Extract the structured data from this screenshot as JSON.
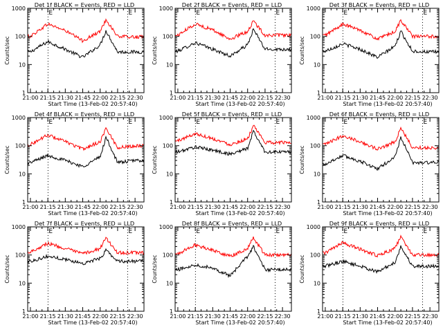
{
  "chart_data": [
    {
      "type": "line",
      "title": "Det 1f BLACK = Events, RED = LLD",
      "xlabel": "Start Time (13-Feb-02 20:57:40)",
      "ylabel": "Counts/sec",
      "yscale": "log",
      "ylim": [
        1,
        1000
      ],
      "xlim_minutes": [
        0,
        100
      ],
      "x_tick_labels": [
        "21:00",
        "21:15",
        "21:30",
        "21:45",
        "22:00",
        "22:15",
        "22:30"
      ],
      "y_tick_labels": [
        "1",
        "10",
        "100",
        "1000"
      ],
      "markers": [
        {
          "label": "E",
          "x_minutes": 17.5
        },
        {
          "label": "E",
          "x_minutes": 86
        }
      ],
      "series": [
        {
          "color": "#000000",
          "peak_time": "22:05",
          "peak_value": 160,
          "values_by_time": [
            [
              "21:00",
              28
            ],
            [
              "21:15",
              65
            ],
            [
              "21:30",
              35
            ],
            [
              "21:45",
              18
            ],
            [
              "22:00",
              50
            ],
            [
              "22:05",
              160
            ],
            [
              "22:15",
              28
            ],
            [
              "22:30",
              28
            ]
          ]
        },
        {
          "color": "#ff0000",
          "peak_time": "22:05",
          "peak_value": 400,
          "values_by_time": [
            [
              "21:00",
              100
            ],
            [
              "21:15",
              280
            ],
            [
              "21:30",
              160
            ],
            [
              "21:45",
              70
            ],
            [
              "22:00",
              150
            ],
            [
              "22:05",
              400
            ],
            [
              "22:15",
              100
            ],
            [
              "22:30",
              95
            ]
          ]
        }
      ]
    },
    {
      "type": "line",
      "title": "Det 2f BLACK = Events, RED = LLD",
      "xlabel": "Start Time (13-Feb-02 20:57:40)",
      "ylabel": "Counts/sec",
      "yscale": "log",
      "ylim": [
        1,
        1000
      ],
      "xlim_minutes": [
        0,
        100
      ],
      "x_tick_labels": [
        "21:00",
        "21:15",
        "21:30",
        "21:45",
        "22:00",
        "22:15",
        "22:30"
      ],
      "y_tick_labels": [
        "1",
        "10",
        "100",
        "1000"
      ],
      "markers": [
        {
          "label": "E",
          "x_minutes": 17.5
        },
        {
          "label": "E",
          "x_minutes": 86
        }
      ],
      "series": [
        {
          "color": "#000000",
          "peak_time": "22:05",
          "peak_value": 180,
          "values_by_time": [
            [
              "21:00",
              30
            ],
            [
              "21:15",
              60
            ],
            [
              "21:30",
              35
            ],
            [
              "21:45",
              20
            ],
            [
              "22:00",
              50
            ],
            [
              "22:05",
              180
            ],
            [
              "22:15",
              35
            ],
            [
              "22:30",
              35
            ]
          ]
        },
        {
          "color": "#ff0000",
          "peak_time": "22:05",
          "peak_value": 350,
          "values_by_time": [
            [
              "21:00",
              110
            ],
            [
              "21:15",
              280
            ],
            [
              "21:30",
              170
            ],
            [
              "21:45",
              80
            ],
            [
              "22:00",
              150
            ],
            [
              "22:05",
              350
            ],
            [
              "22:15",
              110
            ],
            [
              "22:30",
              110
            ]
          ]
        }
      ]
    },
    {
      "type": "line",
      "title": "Det 3f BLACK = Events, RED = LLD",
      "xlabel": "Start Time (13-Feb-02 20:57:40)",
      "ylabel": "Counts/sec",
      "yscale": "log",
      "ylim": [
        1,
        1000
      ],
      "xlim_minutes": [
        0,
        100
      ],
      "x_tick_labels": [
        "21:00",
        "21:15",
        "21:30",
        "21:45",
        "22:00",
        "22:15",
        "22:30"
      ],
      "y_tick_labels": [
        "1",
        "10",
        "100",
        "1000"
      ],
      "markers": [
        {
          "label": "E",
          "x_minutes": 17.5
        },
        {
          "label": "E",
          "x_minutes": 86
        }
      ],
      "series": [
        {
          "color": "#000000",
          "peak_time": "22:05",
          "peak_value": 150,
          "values_by_time": [
            [
              "21:00",
              30
            ],
            [
              "21:15",
              55
            ],
            [
              "21:30",
              35
            ],
            [
              "21:45",
              18
            ],
            [
              "22:00",
              45
            ],
            [
              "22:05",
              150
            ],
            [
              "22:15",
              30
            ],
            [
              "22:30",
              28
            ]
          ]
        },
        {
          "color": "#ff0000",
          "peak_time": "22:05",
          "peak_value": 380,
          "values_by_time": [
            [
              "21:00",
              110
            ],
            [
              "21:15",
              270
            ],
            [
              "21:30",
              170
            ],
            [
              "21:45",
              80
            ],
            [
              "22:00",
              150
            ],
            [
              "22:05",
              380
            ],
            [
              "22:15",
              100
            ],
            [
              "22:30",
              100
            ]
          ]
        }
      ]
    },
    {
      "type": "line",
      "title": "Det 4f BLACK = Events, RED = LLD",
      "xlabel": "Start Time (13-Feb-02 20:57:40)",
      "ylabel": "Counts/sec",
      "yscale": "log",
      "ylim": [
        1,
        1000
      ],
      "xlim_minutes": [
        0,
        100
      ],
      "x_tick_labels": [
        "21:00",
        "21:15",
        "21:30",
        "21:45",
        "22:00",
        "22:15",
        "22:30"
      ],
      "y_tick_labels": [
        "1",
        "10",
        "100",
        "1000"
      ],
      "markers": [
        {
          "label": "E",
          "x_minutes": 17.5
        },
        {
          "label": "E",
          "x_minutes": 86
        }
      ],
      "series": [
        {
          "color": "#000000",
          "peak_time": "22:05",
          "peak_value": 200,
          "values_by_time": [
            [
              "21:00",
              25
            ],
            [
              "21:15",
              45
            ],
            [
              "21:30",
              30
            ],
            [
              "21:45",
              18
            ],
            [
              "22:00",
              40
            ],
            [
              "22:05",
              200
            ],
            [
              "22:15",
              25
            ],
            [
              "22:30",
              30
            ]
          ]
        },
        {
          "color": "#ff0000",
          "peak_time": "22:05",
          "peak_value": 420,
          "values_by_time": [
            [
              "21:00",
              110
            ],
            [
              "21:15",
              240
            ],
            [
              "21:30",
              140
            ],
            [
              "21:45",
              75
            ],
            [
              "22:00",
              140
            ],
            [
              "22:05",
              420
            ],
            [
              "22:15",
              85
            ],
            [
              "22:30",
              100
            ]
          ]
        }
      ]
    },
    {
      "type": "line",
      "title": "Det 5f BLACK = Events, RED = LLD",
      "xlabel": "Start Time (13-Feb-02 20:57:40)",
      "ylabel": "Counts/sec",
      "yscale": "log",
      "ylim": [
        1,
        1000
      ],
      "xlim_minutes": [
        0,
        100
      ],
      "x_tick_labels": [
        "21:00",
        "21:15",
        "21:30",
        "21:45",
        "22:00",
        "22:15",
        "22:30"
      ],
      "y_tick_labels": [
        "1",
        "10",
        "100",
        "1000"
      ],
      "markers": [
        {
          "label": "E",
          "x_minutes": 17.5
        },
        {
          "label": "E",
          "x_minutes": 86
        }
      ],
      "series": [
        {
          "color": "#000000",
          "peak_time": "22:05",
          "peak_value": 330,
          "values_by_time": [
            [
              "21:00",
              60
            ],
            [
              "21:15",
              90
            ],
            [
              "21:30",
              70
            ],
            [
              "21:45",
              50
            ],
            [
              "22:00",
              80
            ],
            [
              "22:05",
              330
            ],
            [
              "22:15",
              60
            ],
            [
              "22:30",
              60
            ]
          ]
        },
        {
          "color": "#ff0000",
          "peak_time": "22:05",
          "peak_value": 500,
          "values_by_time": [
            [
              "21:00",
              150
            ],
            [
              "21:15",
              270
            ],
            [
              "21:30",
              180
            ],
            [
              "21:45",
              110
            ],
            [
              "22:00",
              180
            ],
            [
              "22:05",
              500
            ],
            [
              "22:15",
              130
            ],
            [
              "22:30",
              130
            ]
          ]
        }
      ]
    },
    {
      "type": "line",
      "title": "Det 6f BLACK = Events, RED = LLD",
      "xlabel": "Start Time (13-Feb-02 20:57:40)",
      "ylabel": "Counts/sec",
      "yscale": "log",
      "ylim": [
        1,
        1000
      ],
      "xlim_minutes": [
        0,
        100
      ],
      "x_tick_labels": [
        "21:00",
        "21:15",
        "21:30",
        "21:45",
        "22:00",
        "22:15",
        "22:30"
      ],
      "y_tick_labels": [
        "1",
        "10",
        "100",
        "1000"
      ],
      "markers": [
        {
          "label": "E",
          "x_minutes": 17.5
        },
        {
          "label": "E",
          "x_minutes": 86
        }
      ],
      "series": [
        {
          "color": "#000000",
          "peak_time": "22:05",
          "peak_value": 200,
          "values_by_time": [
            [
              "21:00",
              22
            ],
            [
              "21:15",
              45
            ],
            [
              "21:30",
              28
            ],
            [
              "21:45",
              15
            ],
            [
              "22:00",
              40
            ],
            [
              "22:05",
              200
            ],
            [
              "22:15",
              25
            ],
            [
              "22:30",
              25
            ]
          ]
        },
        {
          "color": "#ff0000",
          "peak_time": "22:05",
          "peak_value": 420,
          "values_by_time": [
            [
              "21:00",
              110
            ],
            [
              "21:15",
              230
            ],
            [
              "21:30",
              140
            ],
            [
              "21:45",
              75
            ],
            [
              "22:00",
              140
            ],
            [
              "22:05",
              420
            ],
            [
              "22:15",
              85
            ],
            [
              "22:30",
              85
            ]
          ]
        }
      ]
    },
    {
      "type": "line",
      "title": "Det 7f BLACK = Events, RED = LLD",
      "xlabel": "Start Time (13-Feb-02 20:57:40)",
      "ylabel": "Counts/sec",
      "yscale": "log",
      "ylim": [
        1,
        1000
      ],
      "xlim_minutes": [
        0,
        100
      ],
      "x_tick_labels": [
        "21:00",
        "21:15",
        "21:30",
        "21:45",
        "22:00",
        "22:15",
        "22:30"
      ],
      "y_tick_labels": [
        "1",
        "10",
        "100",
        "1000"
      ],
      "markers": [
        {
          "label": "E",
          "x_minutes": 17.5
        },
        {
          "label": "E",
          "x_minutes": 86
        }
      ],
      "series": [
        {
          "color": "#000000",
          "peak_time": "22:05",
          "peak_value": 150,
          "values_by_time": [
            [
              "21:00",
              60
            ],
            [
              "21:15",
              90
            ],
            [
              "21:30",
              70
            ],
            [
              "21:45",
              50
            ],
            [
              "22:00",
              75
            ],
            [
              "22:05",
              150
            ],
            [
              "22:15",
              60
            ],
            [
              "22:30",
              60
            ]
          ]
        },
        {
          "color": "#ff0000",
          "peak_time": "22:05",
          "peak_value": 400,
          "values_by_time": [
            [
              "21:00",
              130
            ],
            [
              "21:15",
              260
            ],
            [
              "21:30",
              170
            ],
            [
              "21:45",
              110
            ],
            [
              "22:00",
              170
            ],
            [
              "22:05",
              400
            ],
            [
              "22:15",
              120
            ],
            [
              "22:30",
              120
            ]
          ]
        }
      ]
    },
    {
      "type": "line",
      "title": "Det 8f BLACK = Events, RED = LLD",
      "xlabel": "Start Time (13-Feb-02 20:57:40)",
      "ylabel": "Counts/sec",
      "yscale": "log",
      "ylim": [
        1,
        1000
      ],
      "xlim_minutes": [
        0,
        100
      ],
      "x_tick_labels": [
        "21:00",
        "21:15",
        "21:30",
        "21:45",
        "22:00",
        "22:15",
        "22:30"
      ],
      "y_tick_labels": [
        "1",
        "10",
        "100",
        "1000"
      ],
      "markers": [
        {
          "label": "E",
          "x_minutes": 17.5
        },
        {
          "label": "E",
          "x_minutes": 86
        }
      ],
      "series": [
        {
          "color": "#000000",
          "peak_time": "22:05",
          "peak_value": 200,
          "values_by_time": [
            [
              "21:00",
              30
            ],
            [
              "21:15",
              45
            ],
            [
              "21:30",
              35
            ],
            [
              "21:45",
              18
            ],
            [
              "22:00",
              90
            ],
            [
              "22:05",
              200
            ],
            [
              "22:15",
              30
            ],
            [
              "22:30",
              30
            ]
          ]
        },
        {
          "color": "#ff0000",
          "peak_time": "22:05",
          "peak_value": 420,
          "values_by_time": [
            [
              "21:00",
              110
            ],
            [
              "21:15",
              230
            ],
            [
              "21:30",
              150
            ],
            [
              "21:45",
              90
            ],
            [
              "22:00",
              170
            ],
            [
              "22:05",
              420
            ],
            [
              "22:15",
              100
            ],
            [
              "22:30",
              100
            ]
          ]
        }
      ]
    },
    {
      "type": "line",
      "title": "Det 9f BLACK = Events, RED = LLD",
      "xlabel": "Start Time (13-Feb-02 20:57:40)",
      "ylabel": "Counts/sec",
      "yscale": "log",
      "ylim": [
        1,
        1000
      ],
      "xlim_minutes": [
        0,
        100
      ],
      "x_tick_labels": [
        "21:00",
        "21:15",
        "21:30",
        "21:45",
        "22:00",
        "22:15",
        "22:30"
      ],
      "y_tick_labels": [
        "1",
        "10",
        "100",
        "1000"
      ],
      "markers": [
        {
          "label": "E",
          "x_minutes": 17.5
        },
        {
          "label": "E",
          "x_minutes": 86
        }
      ],
      "series": [
        {
          "color": "#000000",
          "peak_time": "22:05",
          "peak_value": 200,
          "values_by_time": [
            [
              "21:00",
              40
            ],
            [
              "21:15",
              60
            ],
            [
              "21:30",
              40
            ],
            [
              "21:45",
              25
            ],
            [
              "22:00",
              55
            ],
            [
              "22:05",
              200
            ],
            [
              "22:15",
              40
            ],
            [
              "22:30",
              40
            ]
          ]
        },
        {
          "color": "#ff0000",
          "peak_time": "22:05",
          "peak_value": 450,
          "values_by_time": [
            [
              "21:00",
              120
            ],
            [
              "21:15",
              270
            ],
            [
              "21:30",
              160
            ],
            [
              "21:45",
              95
            ],
            [
              "22:00",
              170
            ],
            [
              "22:05",
              450
            ],
            [
              "22:15",
              100
            ],
            [
              "22:30",
              100
            ]
          ]
        }
      ]
    }
  ]
}
